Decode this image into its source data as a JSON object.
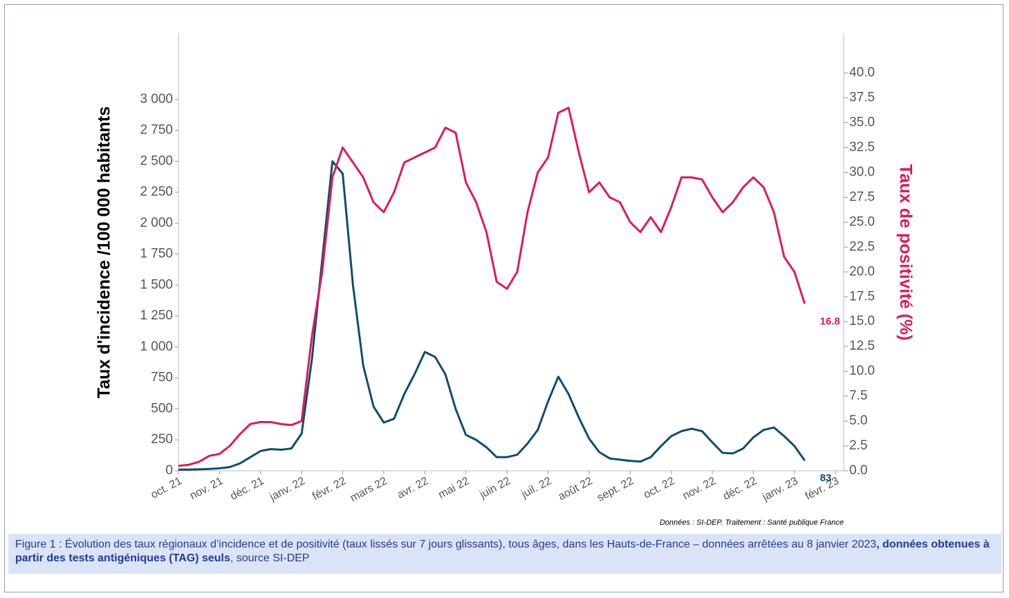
{
  "chart_data": {
    "type": "line",
    "ylabel": "Taux d'incidence /100 000 habitants",
    "y2label": "Taux de positivité (%)",
    "source": "Données : SI-DEP. Traitement : Santé publique France",
    "xlim": [
      0,
      16.2
    ],
    "xticks": [
      {
        "value": 0,
        "label": "oct. 21"
      },
      {
        "value": 1,
        "label": "nov. 21"
      },
      {
        "value": 2,
        "label": "déc. 21"
      },
      {
        "value": 3,
        "label": "janv. 22"
      },
      {
        "value": 4,
        "label": "févr. 22"
      },
      {
        "value": 5,
        "label": "mars 22"
      },
      {
        "value": 6,
        "label": "avr. 22"
      },
      {
        "value": 7,
        "label": "mai 22"
      },
      {
        "value": 8,
        "label": "juin 22"
      },
      {
        "value": 9,
        "label": "juil. 22"
      },
      {
        "value": 10,
        "label": "août 22"
      },
      {
        "value": 11,
        "label": "sept. 22"
      },
      {
        "value": 12,
        "label": "oct. 22"
      },
      {
        "value": 13,
        "label": "nov. 22"
      },
      {
        "value": 14,
        "label": "déc. 22"
      },
      {
        "value": 15,
        "label": "janv. 23"
      },
      {
        "value": 16,
        "label": "févr. 23"
      }
    ],
    "ylim": [
      0,
      3535
    ],
    "yticks": [
      0,
      250,
      500,
      750,
      {
        "value": 1000,
        "label": "1 000"
      },
      {
        "value": 1250,
        "label": "1 250"
      },
      {
        "value": 1500,
        "label": "1 500"
      },
      {
        "value": 1750,
        "label": "1 750"
      },
      {
        "value": 2000,
        "label": "2 000"
      },
      {
        "value": 2250,
        "label": "2 250"
      },
      {
        "value": 2500,
        "label": "2 500"
      },
      {
        "value": 2750,
        "label": "2 750"
      },
      {
        "value": 3000,
        "label": "3 000"
      }
    ],
    "y2lim": [
      0,
      44
    ],
    "y2ticks": [
      {
        "value": 0,
        "label": "0.0"
      },
      2.5,
      {
        "value": 5,
        "label": "5.0"
      },
      7.5,
      {
        "value": 10,
        "label": "10.0"
      },
      12.5,
      {
        "value": 15,
        "label": "15.0"
      },
      17.5,
      {
        "value": 20,
        "label": "20.0"
      },
      22.5,
      {
        "value": 25,
        "label": "25.0"
      },
      27.5,
      {
        "value": 30,
        "label": "30.0"
      },
      32.5,
      {
        "value": 35,
        "label": "35.0"
      },
      37.5,
      {
        "value": 40,
        "label": "40.0"
      }
    ],
    "x": [
      0,
      0.25,
      0.5,
      0.75,
      1,
      1.25,
      1.5,
      1.75,
      2,
      2.25,
      2.5,
      2.75,
      3,
      3.25,
      3.5,
      3.75,
      4,
      4.25,
      4.5,
      4.75,
      5,
      5.25,
      5.5,
      5.75,
      6,
      6.25,
      6.5,
      6.75,
      7,
      7.25,
      7.5,
      7.75,
      8,
      8.25,
      8.5,
      8.75,
      9,
      9.25,
      9.5,
      9.75,
      10,
      10.25,
      10.5,
      10.75,
      11,
      11.25,
      11.5,
      11.75,
      12,
      12.25,
      12.5,
      12.75,
      13,
      13.25,
      13.5,
      13.75,
      14,
      14.25,
      14.5,
      14.75,
      15,
      15.25
    ],
    "series": [
      {
        "name": "Taux d'incidence",
        "color": "#0d4d6e",
        "values": [
          10,
          10,
          12,
          15,
          20,
          30,
          60,
          110,
          160,
          175,
          170,
          180,
          300,
          900,
          1700,
          2500,
          2400,
          1500,
          850,
          520,
          390,
          420,
          620,
          780,
          960,
          920,
          780,
          500,
          290,
          250,
          190,
          110,
          110,
          130,
          220,
          330,
          560,
          760,
          620,
          430,
          260,
          150,
          100,
          90,
          80,
          75,
          110,
          200,
          280,
          320,
          340,
          320,
          230,
          145,
          140,
          180,
          270,
          330,
          350,
          280,
          200,
          83
        ]
      },
      {
        "name": "Taux de positivité",
        "color": "#e0185d",
        "axis": "y2",
        "values": [
          0.5,
          0.6,
          0.9,
          1.5,
          1.7,
          2.5,
          3.7,
          4.7,
          4.9,
          4.9,
          4.7,
          4.6,
          5,
          13.5,
          20,
          29.5,
          32.5,
          31,
          29.5,
          27,
          26,
          28,
          31,
          31.5,
          32,
          32.5,
          34.5,
          34,
          29,
          27,
          24,
          19,
          18.3,
          20,
          26,
          30,
          31.5,
          36,
          36.5,
          32,
          28,
          29,
          27.5,
          27,
          25,
          24,
          25.5,
          24,
          26.5,
          29.5,
          29.5,
          29.3,
          27.5,
          26,
          27,
          28.5,
          29.5,
          28.5,
          26,
          21.5,
          20,
          16.8
        ]
      }
    ]
  },
  "caption": {
    "text": "Figure 1 : Évolution des taux régionaux d’incidence et de positivité (taux lissés sur 7 jours glissants), tous âges, dans les Hauts-de-France – données arrêtées au 8 janvier 2023",
    "bold": ", données obtenues à partir des tests antigéniques (TAG) seuls",
    "end": ", source SI-DEP"
  }
}
